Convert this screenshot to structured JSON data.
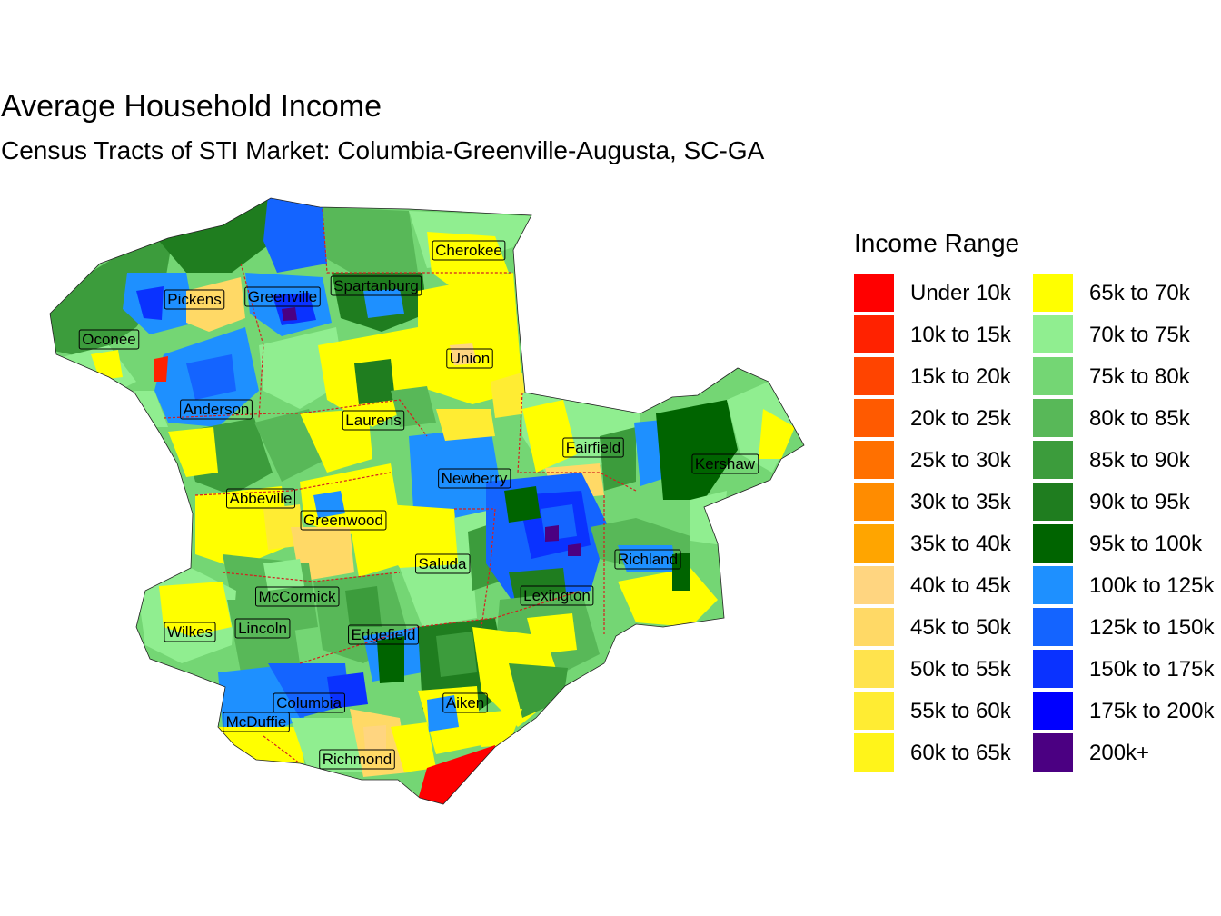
{
  "title": "Average Household Income",
  "subtitle": "Census Tracts of STI Market: Columbia-Greenville-Augusta, SC-GA",
  "legend": {
    "title": "Income Range",
    "items": [
      {
        "label": "Under 10k",
        "color": "#FF0000"
      },
      {
        "label": "10k to 15k",
        "color": "#FF2200"
      },
      {
        "label": "15k to 20k",
        "color": "#FF4400"
      },
      {
        "label": "20k to 25k",
        "color": "#FF5A00"
      },
      {
        "label": "25k to 30k",
        "color": "#FF7000"
      },
      {
        "label": "30k to 35k",
        "color": "#FF8C00"
      },
      {
        "label": "35k to 40k",
        "color": "#FFA500"
      },
      {
        "label": "40k to 45k",
        "color": "#FFD580"
      },
      {
        "label": "45k to 50k",
        "color": "#FFD966"
      },
      {
        "label": "50k to 55k",
        "color": "#FFE34D"
      },
      {
        "label": "55k to 60k",
        "color": "#FFEC33"
      },
      {
        "label": "60k to 65k",
        "color": "#FFF41A"
      },
      {
        "label": "65k to 70k",
        "color": "#FFFF00"
      },
      {
        "label": "70k to 75k",
        "color": "#90EE90"
      },
      {
        "label": "75k to 80k",
        "color": "#74D674"
      },
      {
        "label": "80k to 85k",
        "color": "#58B858"
      },
      {
        "label": "85k to 90k",
        "color": "#3C9C3C"
      },
      {
        "label": "90k to 95k",
        "color": "#1F7D1F"
      },
      {
        "label": "95k to 100k",
        "color": "#006400"
      },
      {
        "label": "100k to 125k",
        "color": "#1E90FF"
      },
      {
        "label": "125k to 150k",
        "color": "#1464FF"
      },
      {
        "label": "150k to 175k",
        "color": "#0A32FF"
      },
      {
        "label": "175k to 200k",
        "color": "#0000FF"
      },
      {
        "label": "200k+",
        "color": "#4B0082"
      }
    ]
  },
  "counties": [
    "Cherokee",
    "Pickens",
    "Greenville",
    "Spartanburg",
    "Oconee",
    "Union",
    "Anderson",
    "Laurens",
    "Fairfield",
    "Kershaw",
    "Newberry",
    "Abbeville",
    "Greenwood",
    "Saluda",
    "Richland",
    "McCormick",
    "Lexington",
    "Wilkes",
    "Lincoln",
    "Edgefield",
    "Columbia",
    "Aiken",
    "McDuffie",
    "Richmond"
  ]
}
